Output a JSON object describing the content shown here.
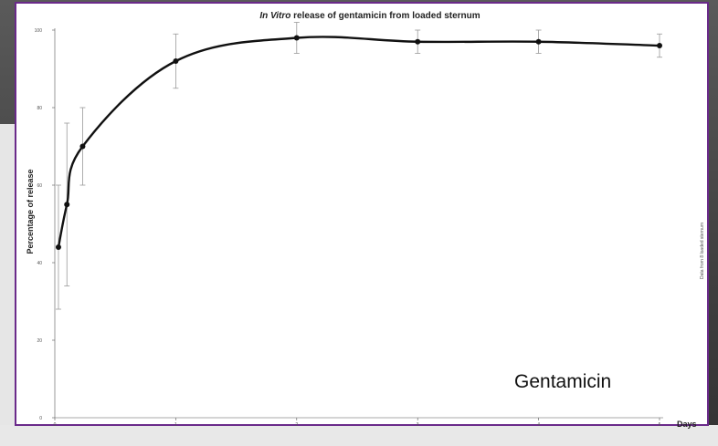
{
  "chart_data": {
    "type": "line",
    "title_italic": "In Vitro",
    "title_rest": " release of gentamicin from loaded sternum",
    "xlabel": "Days",
    "ylabel": "Percentage of release",
    "side_note": "Data from 8 loaded sternum",
    "xlim": [
      0,
      5
    ],
    "ylim": [
      0,
      100
    ],
    "x_ticks": [
      "0",
      "1",
      "2",
      "3",
      "4",
      "5"
    ],
    "y_ticks": [
      "0",
      "20",
      "40",
      "60",
      "80",
      "100"
    ],
    "series": [
      {
        "x": [
          0.03,
          0.1,
          0.23,
          1,
          2,
          3,
          4,
          5
        ],
        "y": [
          44,
          55,
          70,
          92,
          98,
          97,
          97,
          96
        ],
        "err": [
          16,
          21,
          10,
          7,
          4,
          3,
          3,
          3
        ]
      }
    ],
    "annotation": "Gentamicin"
  },
  "colors": {
    "line": "#111111",
    "errorbar": "#9a9a9a",
    "axis": "#555555",
    "frame": "#6a2a8a"
  }
}
